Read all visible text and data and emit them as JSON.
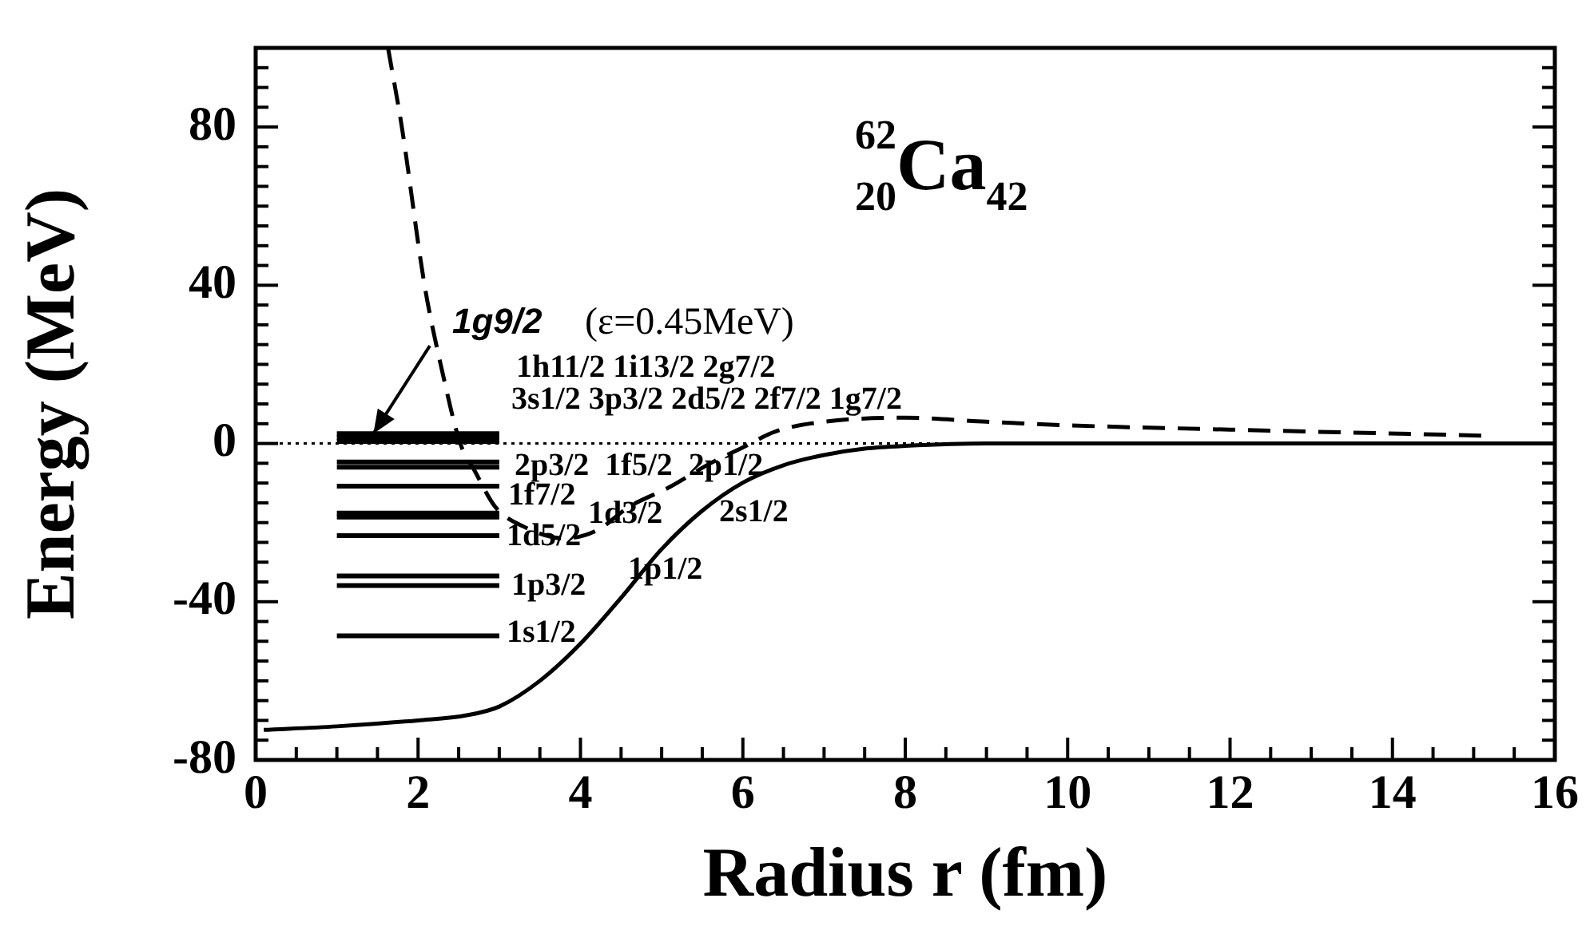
{
  "chart_data": {
    "type": "line",
    "xlabel": "Radius r (fm)",
    "ylabel": "Energy (MeV)",
    "xlim": [
      0,
      16
    ],
    "ylim": [
      -80,
      100
    ],
    "xticks": [
      0,
      {
        "value": 0.5,
        "label": null
      },
      {
        "value": 1,
        "label": null
      },
      {
        "value": 1.5,
        "label": null
      },
      2,
      {
        "value": 2.5,
        "label": null
      },
      {
        "value": 3,
        "label": null
      },
      {
        "value": 3.5,
        "label": null
      },
      4,
      {
        "value": 4.5,
        "label": null
      },
      {
        "value": 5,
        "label": null
      },
      {
        "value": 5.5,
        "label": null
      },
      6,
      {
        "value": 6.5,
        "label": null
      },
      {
        "value": 7,
        "label": null
      },
      {
        "value": 7.5,
        "label": null
      },
      8,
      {
        "value": 8.5,
        "label": null
      },
      {
        "value": 9,
        "label": null
      },
      {
        "value": 9.5,
        "label": null
      },
      10,
      {
        "value": 10.5,
        "label": null
      },
      {
        "value": 11,
        "label": null
      },
      {
        "value": 11.5,
        "label": null
      },
      12,
      {
        "value": 12.5,
        "label": null
      },
      {
        "value": 13,
        "label": null
      },
      {
        "value": 13.5,
        "label": null
      },
      14,
      {
        "value": 14.5,
        "label": null
      },
      {
        "value": 15,
        "label": null
      },
      {
        "value": 15.5,
        "label": null
      },
      16
    ],
    "yticks": [
      -80,
      {
        "value": -75,
        "label": null
      },
      {
        "value": -70,
        "label": null
      },
      {
        "value": -65,
        "label": null
      },
      {
        "value": -60,
        "label": null
      },
      {
        "value": -55,
        "label": null
      },
      {
        "value": -50,
        "label": null
      },
      {
        "value": -45,
        "label": null
      },
      -40,
      {
        "value": -35,
        "label": null
      },
      {
        "value": -30,
        "label": null
      },
      {
        "value": -25,
        "label": null
      },
      {
        "value": -20,
        "label": null
      },
      {
        "value": -15,
        "label": null
      },
      {
        "value": -10,
        "label": null
      },
      {
        "value": -5,
        "label": null
      },
      0,
      {
        "value": 5,
        "label": null
      },
      {
        "value": 10,
        "label": null
      },
      {
        "value": 15,
        "label": null
      },
      {
        "value": 20,
        "label": null
      },
      {
        "value": 25,
        "label": null
      },
      {
        "value": 30,
        "label": null
      },
      {
        "value": 35,
        "label": null
      },
      40,
      {
        "value": 45,
        "label": null
      },
      {
        "value": 50,
        "label": null
      },
      {
        "value": 55,
        "label": null
      },
      {
        "value": 60,
        "label": null
      },
      {
        "value": 65,
        "label": null
      },
      {
        "value": 70,
        "label": null
      },
      {
        "value": 75,
        "label": null
      },
      80,
      {
        "value": 85,
        "label": null
      },
      {
        "value": 90,
        "label": null
      },
      {
        "value": 95,
        "label": null
      },
      {
        "value": 100,
        "label": null
      }
    ],
    "grid": false,
    "legend": false,
    "marker": "none",
    "ref_lines": [
      {
        "axis": "y",
        "value": 0,
        "line_style": "dotted",
        "color": "#000000"
      }
    ],
    "series": [
      {
        "type": "line",
        "color": "#000000",
        "line_style": "solid",
        "x": [
          0.1,
          1,
          2,
          2.6,
          3,
          3.5,
          4,
          4.5,
          5,
          5.5,
          6,
          6.5,
          7,
          7.5,
          8,
          9,
          16
        ],
        "values": [
          -72.4,
          -71.5,
          -70,
          -68.7,
          -66.5,
          -60,
          -50.6,
          -39,
          -26.7,
          -17,
          -9.9,
          -5.5,
          -2.9,
          -1.3,
          -0.6,
          0,
          0
        ]
      },
      {
        "type": "line",
        "color": "#000000",
        "line_style": "dashed",
        "x": [
          1.63,
          1.8,
          2.08,
          2.3,
          2.52,
          2.7,
          2.95,
          3.3,
          3.8,
          4.2,
          4.6,
          5.1,
          5.6,
          6,
          6.4,
          7,
          8,
          9,
          10,
          12,
          15.1
        ],
        "values": [
          100,
          80,
          40,
          18,
          0,
          -7,
          -16,
          -21,
          -24,
          -22,
          -16,
          -11,
          -5,
          -1,
          3,
          5.5,
          6.5,
          5.5,
          4.6,
          3.5,
          2
        ]
      },
      {
        "type": "line",
        "color": "#000000",
        "x": [
          1,
          3
        ],
        "values": [
          2.5,
          2.5
        ]
      },
      {
        "type": "line",
        "color": "#000000",
        "x": [
          1,
          3
        ],
        "values": [
          1.5,
          1.5
        ]
      },
      {
        "type": "line",
        "color": "#000000",
        "x": [
          1,
          3
        ],
        "values": [
          0.5,
          0.5
        ]
      },
      {
        "type": "line",
        "color": "#000000",
        "x": [
          1,
          3
        ],
        "values": [
          -4.7,
          -4.7
        ]
      },
      {
        "type": "line",
        "color": "#000000",
        "x": [
          1,
          3
        ],
        "values": [
          -6,
          -6
        ]
      },
      {
        "type": "line",
        "color": "#000000",
        "x": [
          1,
          3
        ],
        "values": [
          -10.8,
          -10.8
        ]
      },
      {
        "type": "line",
        "color": "#000000",
        "x": [
          1,
          3
        ],
        "values": [
          -17.6,
          -17.6
        ]
      },
      {
        "type": "line",
        "color": "#000000",
        "x": [
          1,
          3
        ],
        "values": [
          -18.6,
          -18.6
        ]
      },
      {
        "type": "line",
        "color": "#000000",
        "x": [
          1,
          3
        ],
        "values": [
          -23.3,
          -23.3
        ]
      },
      {
        "type": "line",
        "color": "#000000",
        "x": [
          1,
          3
        ],
        "values": [
          -33.5,
          -33.5
        ]
      },
      {
        "type": "line",
        "color": "#000000",
        "x": [
          1,
          3
        ],
        "values": [
          -35.9,
          -35.9
        ]
      },
      {
        "type": "line",
        "color": "#000000",
        "x": [
          1,
          3
        ],
        "values": [
          -48.6,
          -48.6
        ]
      }
    ],
    "annotations": [
      "$^{62}$$_{20}$Ca$_{42}$",
      {
        "text": "1g9/2",
        "x": 1.45,
        "y": 2.5
      },
      "(ε=0.45MeV)",
      "1h11/2 1i13/2 2g7/2",
      "3s1/2 3p3/2 2d5/2 2f7/2 1g7/2",
      "2p3/2  1f5/2  2p1/2",
      "1f7/2",
      "1d3/2",
      "2s1/2",
      "1d5/2",
      "1p1/2",
      "1p3/2",
      "1s1/2"
    ]
  }
}
